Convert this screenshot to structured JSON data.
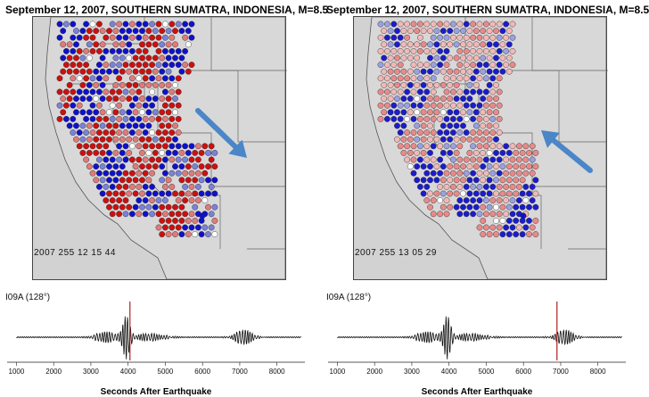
{
  "panels": [
    {
      "title": "September 12, 2007, SOUTHERN SUMATRA, INDONESIA, M=8.5",
      "timestamp": "2007 255 12 15 44",
      "station": "I09A (128°)",
      "arrow_direction": "southeast",
      "marker_seconds": 4050,
      "palette": [
        "#cc1010",
        "#1010cc",
        "#e07a7a",
        "#7a82d8",
        "#ffffff"
      ],
      "pattern": "strong"
    },
    {
      "title": "September 12, 2007, SOUTHERN SUMATRA, INDONESIA, M=8.5",
      "timestamp": "2007 255 13 05 29",
      "station": "I09A (128°)",
      "arrow_direction": "northwest",
      "marker_seconds": 6900,
      "palette": [
        "#e88a8a",
        "#1c1ccc",
        "#f2b8b8",
        "#9aa0e0",
        "#ffffff"
      ],
      "pattern": "soft"
    }
  ],
  "seismogram": {
    "xlabel": "Seconds After Earthquake",
    "ticks": [
      "1000",
      "2000",
      "3000",
      "4000",
      "5000",
      "6000",
      "7000",
      "8000"
    ],
    "xlim": [
      750,
      8750
    ]
  },
  "colors": {
    "arrow": "#4a86c8",
    "marker": "#b02020",
    "map_bg": "#d2d2d2",
    "map_land": "#d8d8d8"
  }
}
